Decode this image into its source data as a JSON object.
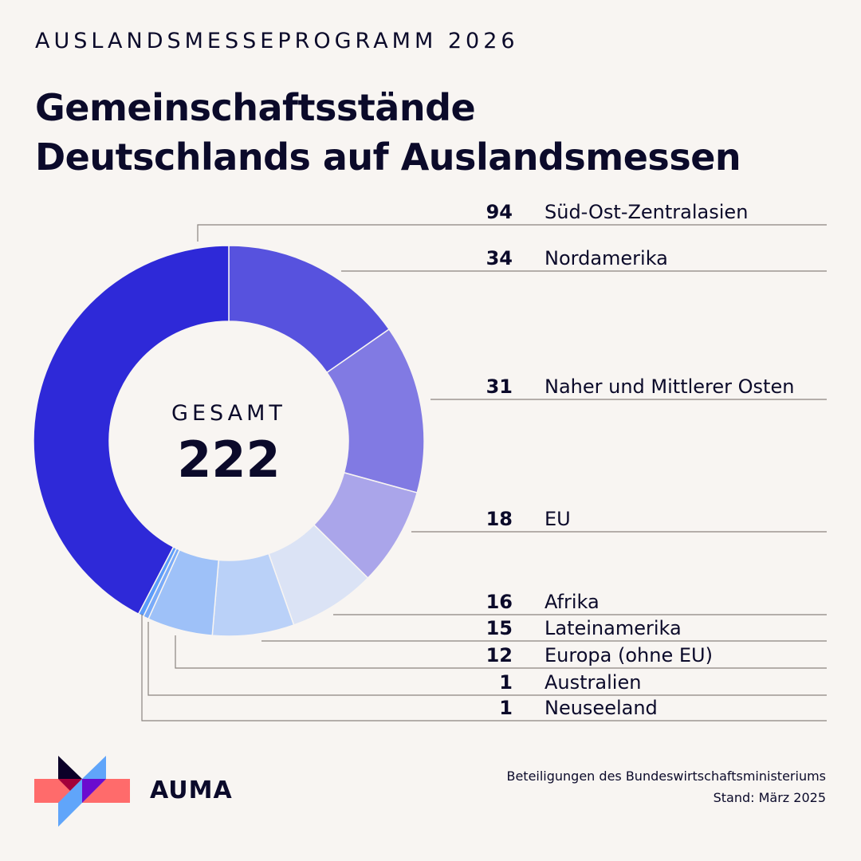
{
  "header": {
    "kicker": "AUSLANDSMESSEPROGRAMM 2026",
    "title_line1": "Gemeinschaftsstände",
    "title_line2": "Deutschlands auf Auslandsmessen"
  },
  "chart_data": {
    "type": "pie",
    "variant": "donut",
    "title": "Gemeinschaftsstände Deutschlands auf Auslandsmessen",
    "center_label": "GESAMT",
    "total": 222,
    "slices": [
      {
        "label": "Nordamerika",
        "value": 34,
        "color": "#5752de"
      },
      {
        "label": "Naher und Mittlerer Osten",
        "value": 31,
        "color": "#817ae3"
      },
      {
        "label": "EU",
        "value": 18,
        "color": "#aaa5ea"
      },
      {
        "label": "Afrika",
        "value": 16,
        "color": "#dbe3f5"
      },
      {
        "label": "Lateinamerika",
        "value": 15,
        "color": "#bad1f8"
      },
      {
        "label": "Europa (ohne EU)",
        "value": 12,
        "color": "#9ec1f8"
      },
      {
        "label": "Australien",
        "value": 1,
        "color": "#7aabf9"
      },
      {
        "label": "Neuseeland",
        "value": 1,
        "color": "#5c9cfa"
      },
      {
        "label": "Süd-Ost-Zentralasien",
        "value": 94,
        "color": "#2e29d8"
      }
    ]
  },
  "footer": {
    "line1": "Beteiligungen des Bundeswirtschaftsministeriums",
    "line2": "Stand: März 2025",
    "logo_text": "AUMA"
  }
}
